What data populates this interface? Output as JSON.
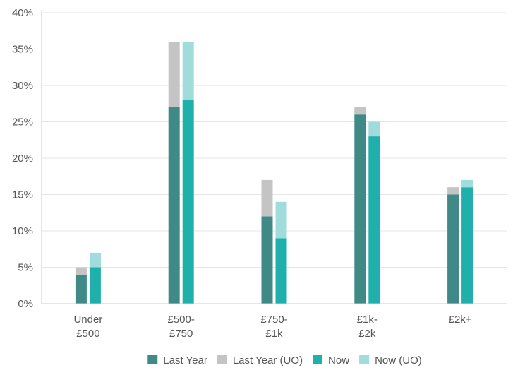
{
  "chart_data": {
    "type": "bar",
    "stacked_groups": true,
    "categories": [
      [
        "Under",
        "£500"
      ],
      [
        "£500-",
        "£750"
      ],
      [
        "£750-",
        "£1k"
      ],
      [
        "£1k-",
        "£2k"
      ],
      [
        "£2k+"
      ]
    ],
    "series": [
      {
        "name": "Last Year",
        "color": "#3f8a86",
        "stack": "last_year",
        "values": [
          4,
          27,
          12,
          26,
          15
        ]
      },
      {
        "name": "Last Year (UO)",
        "color": "#c4c4c4",
        "stack": "last_year",
        "values": [
          1,
          9,
          5,
          1,
          1
        ]
      },
      {
        "name": "Now",
        "color": "#1fb0ab",
        "stack": "now",
        "values": [
          5,
          28,
          9,
          23,
          16
        ]
      },
      {
        "name": "Now (UO)",
        "color": "#9fdcdb",
        "stack": "now",
        "values": [
          2,
          8,
          5,
          2,
          1
        ]
      }
    ],
    "y_ticks": [
      "0%",
      "5%",
      "10%",
      "15%",
      "20%",
      "25%",
      "30%",
      "35%",
      "40%"
    ],
    "ylim": [
      0,
      40
    ],
    "grid": true,
    "legend_position": "bottom",
    "title": "",
    "xlabel": "",
    "ylabel": ""
  }
}
